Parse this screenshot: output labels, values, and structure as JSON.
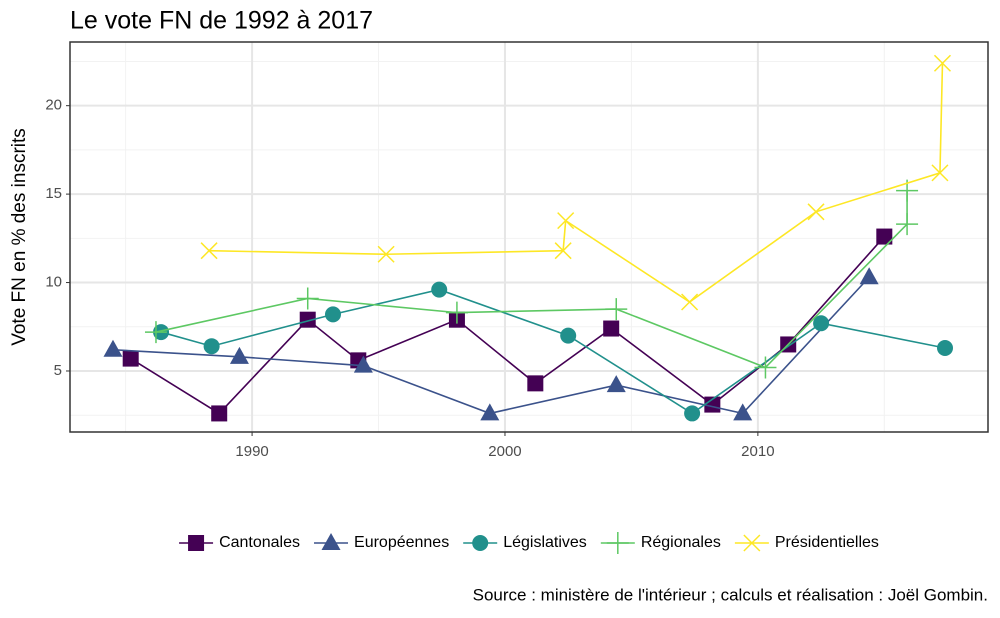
{
  "chart_data": {
    "type": "line",
    "title": "Le vote FN de 1992 à 2017",
    "y_label": "Vote FN en % des inscrits",
    "caption": "Source : ministère de l'intérieur ; calculs et réalisation : Joël Gombin.",
    "xlim": [
      1982.8,
      2019.1
    ],
    "xticks": [
      1990,
      2000,
      2010
    ],
    "ylim": [
      1.55,
      23.6
    ],
    "yticks": [
      5,
      10,
      15,
      20
    ],
    "grid": true,
    "legend": "bottom",
    "series": [
      {
        "name": "Cantonales",
        "color": "#440154",
        "shape": "square",
        "x": [
          1985.2,
          1988.7,
          1992.2,
          1994.2,
          1998.1,
          2001.2,
          2004.2,
          2008.2,
          2011.2,
          2015.0
        ],
        "values": [
          5.7,
          2.6,
          7.9,
          5.6,
          7.9,
          4.3,
          7.4,
          3.1,
          6.5,
          12.6
        ]
      },
      {
        "name": "Européennes",
        "color": "#3b528b",
        "shape": "triangle",
        "x": [
          1984.5,
          1989.5,
          1994.4,
          1999.4,
          2004.4,
          2009.4,
          2014.4
        ],
        "values": [
          6.2,
          5.8,
          5.3,
          2.6,
          4.2,
          2.6,
          10.3
        ]
      },
      {
        "name": "Législatives",
        "color": "#21908c",
        "shape": "circle",
        "x": [
          1986.4,
          1988.4,
          1993.2,
          1997.4,
          2002.5,
          2007.4,
          2012.5,
          2017.4
        ],
        "values": [
          7.2,
          6.4,
          8.2,
          9.6,
          7.0,
          2.6,
          7.7,
          6.3
        ]
      },
      {
        "name": "Régionales",
        "color": "#5dc863",
        "shape": "plus",
        "x": [
          1986.2,
          1992.2,
          1998.1,
          2004.4,
          2010.3,
          2015.9,
          2015.9
        ],
        "values": [
          7.2,
          9.1,
          8.3,
          8.5,
          5.2,
          13.3,
          15.2
        ]
      },
      {
        "name": "Présidentielles",
        "color": "#fde725",
        "shape": "cross",
        "x": [
          1988.3,
          1995.3,
          2002.3,
          2002.4,
          2007.3,
          2012.3,
          2017.2,
          2017.3
        ],
        "values": [
          11.8,
          11.6,
          11.8,
          13.5,
          8.9,
          14.0,
          16.2,
          22.4
        ]
      }
    ]
  }
}
